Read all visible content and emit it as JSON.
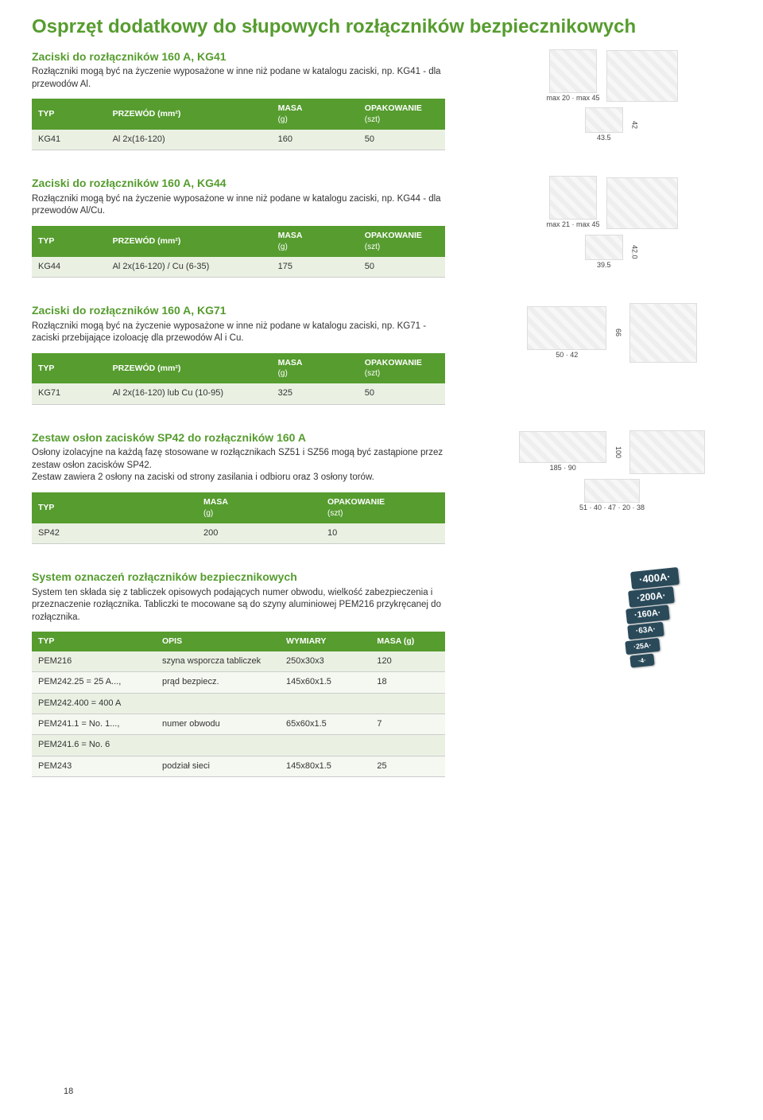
{
  "page_number": "18",
  "main_title": "Osprzęt dodatkowy do słupowych rozłączników bezpiecznikowych",
  "colors": {
    "accent": "#569c2f",
    "header_bg": "#569c2f",
    "header_fg": "#ffffff",
    "row_bg": "#eaf1e3"
  },
  "kg41": {
    "title": "Zaciski do rozłączników 160 A, KG41",
    "desc": "Rozłączniki mogą być na życzenie wyposażone w inne niż podane w katalogu zaciski, np. KG41 - dla przewodów Al.",
    "headers": {
      "typ": "TYP",
      "przewod": "PRZEWÓD (mm²)",
      "masa": "MASA",
      "masa_sub": "(g)",
      "opak": "OPAKOWANIE",
      "opak_sub": "(szt)"
    },
    "row": {
      "typ": "KG41",
      "przewod": "Al 2x(16-120)",
      "masa": "160",
      "opak": "50"
    },
    "dims": {
      "h1": "max 45",
      "h2": "max 20",
      "w1": "42",
      "w2": "43.5"
    }
  },
  "kg44": {
    "title": "Zaciski do rozłączników 160 A, KG44",
    "desc": "Rozłączniki mogą być na życzenie wyposażone w inne niż podane w katalogu zaciski, np. KG44 - dla przewodów Al/Cu.",
    "headers": {
      "typ": "TYP",
      "przewod": "PRZEWÓD (mm²)",
      "masa": "MASA",
      "masa_sub": "(g)",
      "opak": "OPAKOWANIE",
      "opak_sub": "(szt)"
    },
    "row": {
      "typ": "KG44",
      "przewod": "Al 2x(16-120) / Cu (6-35)",
      "masa": "175",
      "opak": "50"
    },
    "dims": {
      "h1": "max 45",
      "h2": "max 21",
      "w1": "42.0",
      "w2": "39.5"
    }
  },
  "kg71": {
    "title": "Zaciski do rozłączników 160 A, KG71",
    "desc": "Rozłączniki mogą być na życzenie wyposażone w inne niż podane w katalogu zaciski, np. KG71 - zaciski przebijające izoloację dla przewodów Al i Cu.",
    "headers": {
      "typ": "TYP",
      "przewod": "PRZEWÓD (mm²)",
      "masa": "MASA",
      "masa_sub": "(g)",
      "opak": "OPAKOWANIE",
      "opak_sub": "(szt)"
    },
    "row": {
      "typ": "KG71",
      "przewod": "Al 2x(16-120) lub Cu (10-95)",
      "masa": "325",
      "opak": "50"
    },
    "dims": {
      "h": "66",
      "w1": "50",
      "w2": "42"
    }
  },
  "sp42": {
    "title": "Zestaw osłon zacisków SP42 do rozłączników 160 A",
    "desc": "Osłony izolacyjne na każdą fazę stosowane w rozłącznikach SZ51 i SZ56 mogą być zastąpione przez zestaw osłon zacisków SP42.\nZestaw zawiera 2 osłony na zaciski od strony zasilania i odbioru oraz 3 osłony torów.",
    "headers": {
      "typ": "TYP",
      "masa": "MASA",
      "masa_sub": "(g)",
      "opak": "OPAKOWANIE",
      "opak_sub": "(szt)"
    },
    "row": {
      "typ": "SP42",
      "masa": "200",
      "opak": "10"
    },
    "dims": {
      "h": "100",
      "w1": "185",
      "w2": "90",
      "d1": "51",
      "d2": "40",
      "d3": "47",
      "d4": "20",
      "d5": "38"
    }
  },
  "pem": {
    "title": "System oznaczeń rozłączników bezpiecznikowych",
    "desc": "System ten składa się z tabliczek opisowych podających numer obwodu, wielkość zabezpieczenia i przeznaczenie rozłącznika. Tabliczki te mocowane są do szyny aluminiowej PEM216 przykręcanej do rozłącznika.",
    "headers": {
      "typ": "TYP",
      "opis": "OPIS",
      "wymiary": "WYMIARY",
      "masa": "MASA (g)"
    },
    "rows": [
      {
        "typ": "PEM216",
        "opis": "szyna wsporcza tabliczek",
        "wymiary": "250x30x3",
        "masa": "120"
      },
      {
        "typ": "PEM242.25 = 25 A...,",
        "opis": "prąd bezpiecz.",
        "wymiary": "145x60x1.5",
        "masa": "18"
      },
      {
        "typ": "PEM242.400 = 400 A",
        "opis": "",
        "wymiary": "",
        "masa": ""
      },
      {
        "typ": "PEM241.1 = No. 1...,",
        "opis": "numer obwodu",
        "wymiary": "65x60x1.5",
        "masa": "7"
      },
      {
        "typ": "PEM241.6 = No. 6",
        "opis": "",
        "wymiary": "",
        "masa": ""
      },
      {
        "typ": "PEM243",
        "opis": "podział sieci",
        "wymiary": "145x80x1.5",
        "masa": "25"
      }
    ],
    "labels": [
      "·400A·",
      "·200A·",
      "·160A·",
      "·63A·",
      "·25A·",
      "·4·"
    ]
  }
}
